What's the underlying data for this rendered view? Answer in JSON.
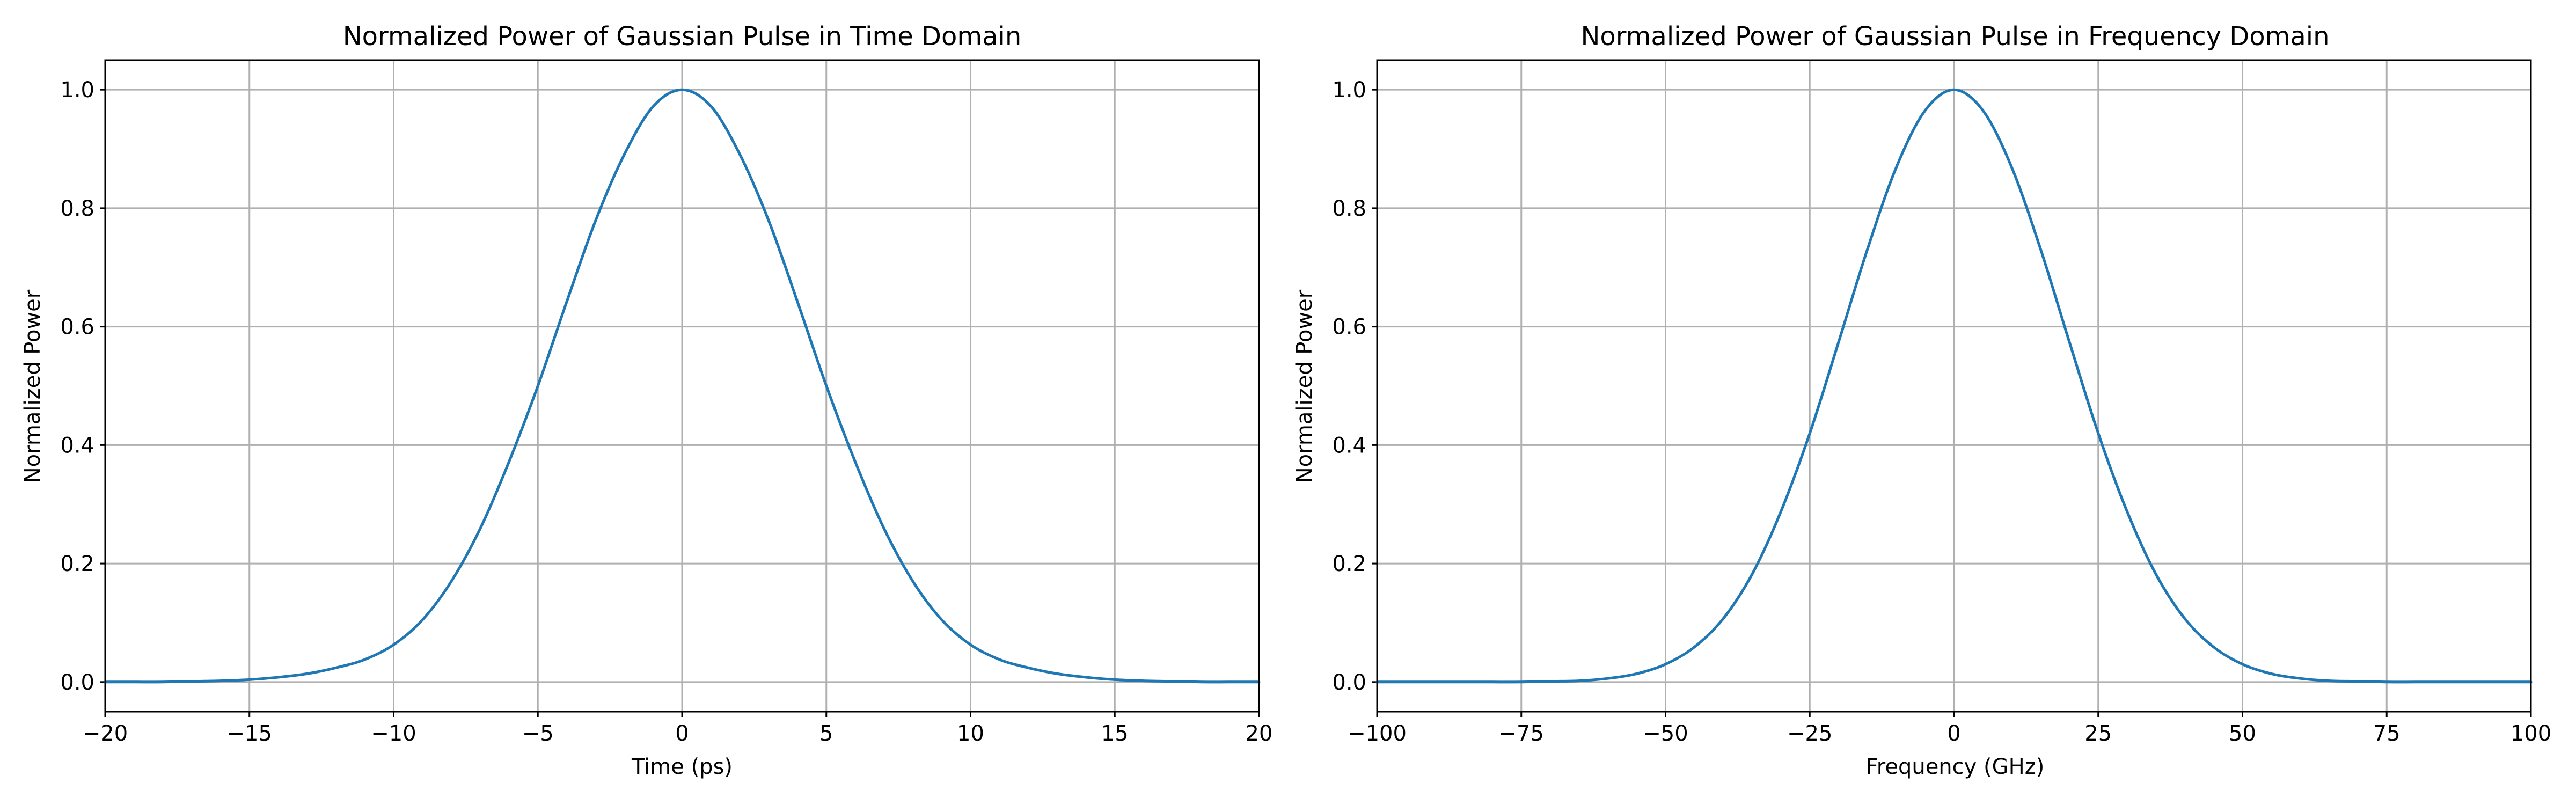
{
  "chart_data": [
    {
      "type": "line",
      "title": "Normalized Power of Gaussian Pulse in Time Domain",
      "xlabel": "Time (ps)",
      "ylabel": "Normalized Power",
      "xlim": [
        -20,
        20
      ],
      "ylim": [
        -0.05,
        1.05
      ],
      "xticks": [
        -20,
        -15,
        -10,
        -5,
        0,
        5,
        10,
        15,
        20
      ],
      "xtick_labels": [
        "−20",
        "−15",
        "−10",
        "−5",
        "0",
        "5",
        "10",
        "15",
        "20"
      ],
      "yticks": [
        0.0,
        0.2,
        0.4,
        0.6,
        0.8,
        1.0
      ],
      "ytick_labels": [
        "0.0",
        "0.2",
        "0.4",
        "0.6",
        "0.8",
        "1.0"
      ],
      "grid": true,
      "series": [
        {
          "color": "#1f77b4",
          "x": [
            -20,
            -19,
            -18,
            -17,
            -16,
            -15,
            -14,
            -13,
            -12,
            -11,
            -10,
            -9,
            -8,
            -7,
            -6,
            -5,
            -4,
            -3,
            -2,
            -1,
            0,
            1,
            2,
            3,
            4,
            5,
            6,
            7,
            8,
            9,
            10,
            11,
            12,
            13,
            14,
            15,
            16,
            17,
            18,
            19,
            20
          ],
          "y": [
            0.0,
            0.0,
            0.0,
            0.001,
            0.002,
            0.004,
            0.008,
            0.014,
            0.024,
            0.038,
            0.063,
            0.105,
            0.17,
            0.259,
            0.372,
            0.5,
            0.642,
            0.779,
            0.891,
            0.972,
            1.0,
            0.972,
            0.891,
            0.779,
            0.642,
            0.5,
            0.372,
            0.259,
            0.17,
            0.105,
            0.063,
            0.038,
            0.024,
            0.014,
            0.008,
            0.004,
            0.002,
            0.001,
            0.0,
            0.0,
            0.0
          ]
        }
      ]
    },
    {
      "type": "line",
      "title": "Normalized Power of Gaussian Pulse in Frequency Domain",
      "xlabel": "Frequency (GHz)",
      "ylabel": "Normalized Power",
      "xlim": [
        -100,
        100
      ],
      "ylim": [
        -0.05,
        1.05
      ],
      "xticks": [
        -100,
        -75,
        -50,
        -25,
        0,
        25,
        50,
        75,
        100
      ],
      "xtick_labels": [
        "−100",
        "−75",
        "−50",
        "−25",
        "0",
        "25",
        "50",
        "75",
        "100"
      ],
      "yticks": [
        0.0,
        0.2,
        0.4,
        0.6,
        0.8,
        1.0
      ],
      "ytick_labels": [
        "0.0",
        "0.2",
        "0.4",
        "0.6",
        "0.8",
        "1.0"
      ],
      "grid": true,
      "series": [
        {
          "color": "#1f77b4",
          "x": [
            -100,
            -95,
            -90,
            -85,
            -80,
            -75,
            -70,
            -65,
            -60,
            -55,
            -50,
            -45,
            -40,
            -35,
            -30,
            -25,
            -20,
            -15,
            -10,
            -5,
            0,
            5,
            10,
            15,
            20,
            25,
            30,
            35,
            40,
            45,
            50,
            55,
            60,
            65,
            70,
            75,
            80,
            85,
            90,
            95,
            100
          ],
          "y": [
            0.0,
            0.0,
            0.0,
            0.0,
            0.0,
            0.0,
            0.001,
            0.002,
            0.006,
            0.014,
            0.03,
            0.059,
            0.107,
            0.182,
            0.288,
            0.42,
            0.574,
            0.731,
            0.869,
            0.965,
            1.0,
            0.965,
            0.869,
            0.731,
            0.574,
            0.42,
            0.288,
            0.182,
            0.107,
            0.059,
            0.03,
            0.014,
            0.006,
            0.002,
            0.001,
            0.0,
            0.0,
            0.0,
            0.0,
            0.0,
            0.0
          ]
        }
      ]
    }
  ]
}
